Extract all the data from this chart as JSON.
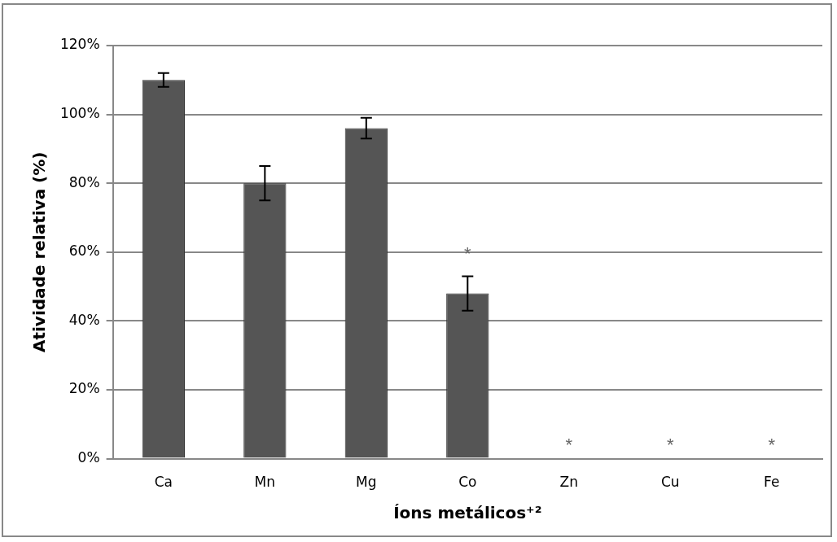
{
  "chart_data": {
    "type": "bar",
    "xlabel": "Íons metálicos⁺²",
    "ylabel": "Atividade relativa (%)",
    "categories": [
      "Ca",
      "Mn",
      "Mg",
      "Co",
      "Zn",
      "Cu",
      "Fe"
    ],
    "values": [
      110,
      80,
      96,
      48,
      0,
      0,
      0
    ],
    "errors": [
      2,
      5,
      3,
      5,
      null,
      null,
      null
    ],
    "color": "#555555",
    "ylim": [
      0,
      120
    ],
    "yticks": [
      {
        "value": 0,
        "label": "0%"
      },
      {
        "value": 20,
        "label": "20%"
      },
      {
        "value": 40,
        "label": "40%"
      },
      {
        "value": 60,
        "label": "60%"
      },
      {
        "value": 80,
        "label": "80%"
      },
      {
        "value": 100,
        "label": "100%"
      },
      {
        "value": 120,
        "label": "120%"
      }
    ],
    "grid": "y",
    "annotations": [
      {
        "text": "*",
        "x": "Co",
        "y": 48
      },
      {
        "text": "*",
        "x": "Zn",
        "y": 0
      },
      {
        "text": "*",
        "x": "Cu",
        "y": 0
      },
      {
        "text": "*",
        "x": "Fe",
        "y": 0
      }
    ]
  }
}
